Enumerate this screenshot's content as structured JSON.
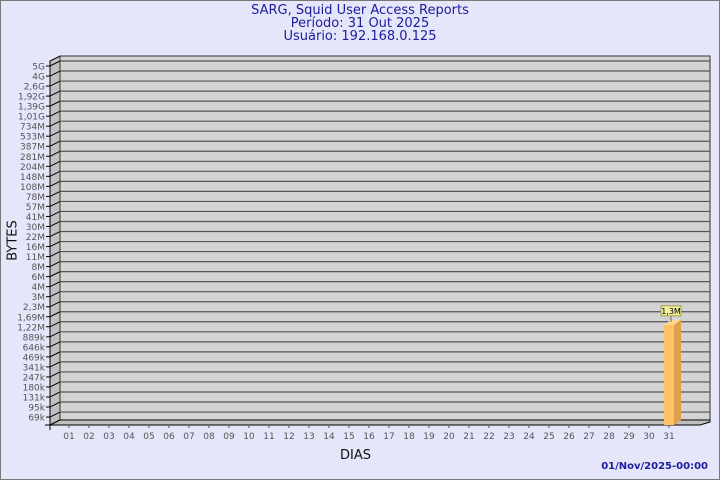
{
  "chart_data": {
    "type": "bar",
    "title": "SARG, Squid User Access Reports",
    "subtitle_period": "Período: 31 Out 2025",
    "subtitle_user": "Usuário: 192.168.0.125",
    "xlabel": "DIAS",
    "ylabel": "BYTES",
    "y_scale": "log",
    "y_ticks": [
      "5G",
      "4G",
      "2,6G",
      "1,92G",
      "1,39G",
      "1,01G",
      "734M",
      "533M",
      "387M",
      "281M",
      "204M",
      "148M",
      "108M",
      "78M",
      "57M",
      "41M",
      "30M",
      "22M",
      "16M",
      "11M",
      "8M",
      "6M",
      "4M",
      "3M",
      "2,3M",
      "1,69M",
      "1,22M",
      "889k",
      "646k",
      "469k",
      "341k",
      "247k",
      "180k",
      "131k",
      "95k",
      "69k"
    ],
    "categories": [
      "01",
      "02",
      "03",
      "04",
      "05",
      "06",
      "07",
      "08",
      "09",
      "10",
      "11",
      "12",
      "13",
      "14",
      "15",
      "16",
      "17",
      "18",
      "19",
      "20",
      "21",
      "22",
      "23",
      "24",
      "25",
      "26",
      "27",
      "28",
      "29",
      "30",
      "31"
    ],
    "bars": [
      {
        "day": "31",
        "value": "1,3M",
        "bytes": 1300000
      }
    ],
    "grid": true,
    "colors": {
      "background": "#e6e6fa",
      "plot": "#d3d3d3",
      "bar": "#ffc266",
      "bar_side": "#e0a04a",
      "title": "#1c1c9c"
    }
  },
  "footer": {
    "timestamp": "01/Nov/2025-00:00"
  }
}
